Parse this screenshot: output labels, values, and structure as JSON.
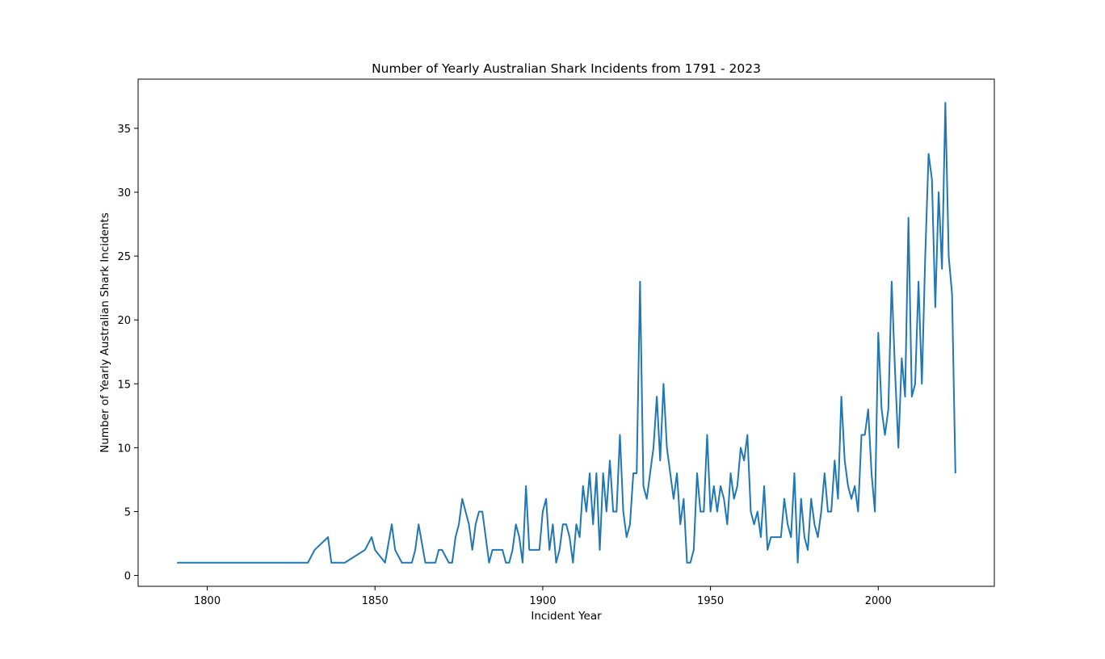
{
  "chart_data": {
    "type": "line",
    "title": "Number of Yearly Australian Shark Incidents from 1791 - 2023",
    "xlabel": "Incident Year",
    "ylabel": "Number of Yearly Australian Shark Incidents",
    "xlim": [
      1779.4,
      2034.6
    ],
    "ylim": [
      -0.85,
      38.85
    ],
    "xticks": [
      1800,
      1850,
      1900,
      1950,
      2000
    ],
    "yticks": [
      0,
      5,
      10,
      15,
      20,
      25,
      30,
      35
    ],
    "grid": false,
    "line_color": "#1f77b4",
    "series": [
      {
        "x": [
          1791,
          1830,
          1832,
          1836,
          1837,
          1841,
          1847,
          1849,
          1850,
          1853,
          1855,
          1856,
          1858,
          1861,
          1862,
          1863,
          1865,
          1867,
          1868,
          1869,
          1870,
          1872,
          1873,
          1874,
          1875,
          1876,
          1878,
          1879,
          1880,
          1881,
          1882,
          1883,
          1884,
          1885,
          1888,
          1889,
          1890,
          1891,
          1892,
          1893,
          1894,
          1895,
          1896,
          1899,
          1900,
          1901,
          1902,
          1903,
          1904,
          1905,
          1906,
          1907,
          1908,
          1909,
          1910,
          1911,
          1912,
          1913,
          1914,
          1915,
          1916,
          1917,
          1918,
          1919,
          1920,
          1921,
          1922,
          1923,
          1924,
          1925,
          1926,
          1927,
          1928,
          1929,
          1930,
          1931,
          1932,
          1933,
          1934,
          1935,
          1936,
          1937,
          1938,
          1939,
          1940,
          1941,
          1942,
          1943,
          1944,
          1945,
          1946,
          1947,
          1948,
          1949,
          1950,
          1951,
          1952,
          1953,
          1954,
          1955,
          1956,
          1957,
          1958,
          1959,
          1960,
          1961,
          1962,
          1963,
          1964,
          1965,
          1966,
          1967,
          1968,
          1969,
          1970,
          1971,
          1972,
          1973,
          1974,
          1975,
          1976,
          1977,
          1978,
          1979,
          1980,
          1981,
          1982,
          1983,
          1984,
          1985,
          1986,
          1987,
          1988,
          1989,
          1990,
          1991,
          1992,
          1993,
          1994,
          1995,
          1996,
          1997,
          1998,
          1999,
          2000,
          2001,
          2002,
          2003,
          2004,
          2005,
          2006,
          2007,
          2008,
          2009,
          2010,
          2011,
          2012,
          2013,
          2014,
          2015,
          2016,
          2017,
          2018,
          2019,
          2020,
          2021,
          2022,
          2023
        ],
        "y": [
          1,
          1,
          2,
          3,
          1,
          1,
          2,
          3,
          2,
          1,
          4,
          2,
          1,
          1,
          2,
          4,
          1,
          1,
          1,
          2,
          2,
          1,
          1,
          3,
          4,
          6,
          4,
          2,
          4,
          5,
          5,
          3,
          1,
          2,
          2,
          1,
          1,
          2,
          4,
          3,
          1,
          7,
          2,
          2,
          5,
          6,
          2,
          4,
          1,
          2,
          4,
          4,
          3,
          1,
          4,
          3,
          7,
          5,
          8,
          4,
          8,
          2,
          8,
          5,
          9,
          5,
          5,
          11,
          5,
          3,
          4,
          8,
          8,
          23,
          7,
          6,
          8,
          10,
          14,
          9,
          15,
          10,
          8,
          6,
          8,
          4,
          6,
          1,
          1,
          2,
          8,
          5,
          5,
          11,
          5,
          7,
          5,
          7,
          6,
          4,
          8,
          6,
          7,
          10,
          9,
          11,
          5,
          4,
          5,
          3,
          7,
          2,
          3,
          3,
          3,
          3,
          6,
          4,
          3,
          8,
          1,
          6,
          3,
          2,
          6,
          4,
          3,
          5,
          8,
          5,
          5,
          9,
          6,
          14,
          9,
          7,
          6,
          7,
          5,
          11,
          11,
          13,
          8,
          5,
          19,
          13,
          11,
          13,
          23,
          16,
          10,
          17,
          14,
          28,
          14,
          15,
          23,
          15,
          25,
          33,
          31,
          21,
          30,
          24,
          37,
          25,
          22,
          8
        ]
      }
    ]
  }
}
